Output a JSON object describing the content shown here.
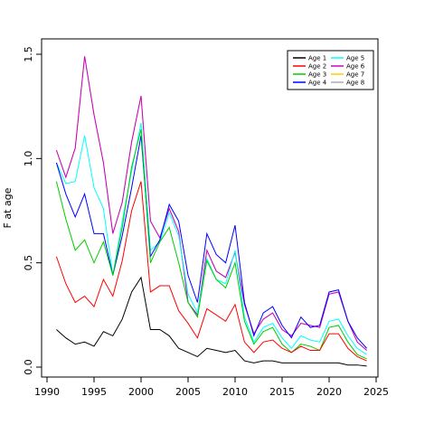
{
  "chart_data": {
    "type": "line",
    "title": "",
    "xlabel": "",
    "ylabel": "F at age",
    "xlim": [
      1990,
      2025
    ],
    "ylim": [
      0,
      1.5
    ],
    "x_ticks": [
      1990,
      1995,
      2000,
      2005,
      2010,
      2015,
      2020,
      2025
    ],
    "y_ticks": [
      0.0,
      0.5,
      1.0,
      1.5
    ],
    "y_tick_labels": [
      "0.0",
      "0.5",
      "1.0",
      "1.5"
    ],
    "legend_position": "top-right",
    "grid": false,
    "x": [
      1991,
      1992,
      1993,
      1994,
      1995,
      1996,
      1997,
      1998,
      1999,
      2000,
      2001,
      2002,
      2003,
      2004,
      2005,
      2006,
      2007,
      2008,
      2009,
      2010,
      2011,
      2012,
      2013,
      2014,
      2015,
      2016,
      2017,
      2018,
      2019,
      2020,
      2021,
      2022,
      2023,
      2024
    ],
    "series": [
      {
        "name": "Age 1",
        "color": "#000000",
        "values": [
          0.18,
          0.14,
          0.11,
          0.12,
          0.1,
          0.17,
          0.15,
          0.23,
          0.36,
          0.43,
          0.18,
          0.18,
          0.15,
          0.09,
          0.07,
          0.05,
          0.09,
          0.08,
          0.07,
          0.08,
          0.03,
          0.02,
          0.03,
          0.03,
          0.02,
          0.02,
          0.02,
          0.02,
          0.02,
          0.02,
          0.02,
          0.01,
          0.01,
          0.005
        ]
      },
      {
        "name": "Age 2",
        "color": "#ff0000",
        "values": [
          0.53,
          0.4,
          0.31,
          0.34,
          0.29,
          0.42,
          0.34,
          0.51,
          0.75,
          0.89,
          0.36,
          0.39,
          0.39,
          0.27,
          0.21,
          0.14,
          0.28,
          0.25,
          0.22,
          0.3,
          0.12,
          0.07,
          0.12,
          0.13,
          0.09,
          0.07,
          0.1,
          0.08,
          0.08,
          0.16,
          0.16,
          0.09,
          0.05,
          0.03
        ]
      },
      {
        "name": "Age 3",
        "color": "#00cd00",
        "values": [
          0.89,
          0.71,
          0.56,
          0.61,
          0.5,
          0.6,
          0.44,
          0.67,
          0.96,
          1.14,
          0.5,
          0.6,
          0.67,
          0.5,
          0.31,
          0.24,
          0.51,
          0.42,
          0.38,
          0.5,
          0.22,
          0.11,
          0.17,
          0.19,
          0.11,
          0.07,
          0.11,
          0.1,
          0.08,
          0.19,
          0.2,
          0.12,
          0.06,
          0.04
        ]
      },
      {
        "name": "Age 4",
        "color": "#0000ff",
        "values": [
          0.98,
          0.83,
          0.72,
          0.83,
          0.64,
          0.64,
          0.44,
          0.63,
          0.86,
          1.11,
          0.53,
          0.61,
          0.78,
          0.7,
          0.44,
          0.31,
          0.64,
          0.54,
          0.5,
          0.68,
          0.31,
          0.15,
          0.26,
          0.29,
          0.2,
          0.14,
          0.24,
          0.19,
          0.2,
          0.36,
          0.37,
          0.22,
          0.14,
          0.09
        ]
      },
      {
        "name": "Age 5",
        "color": "#00ffff",
        "values": [
          0.98,
          0.88,
          0.89,
          1.11,
          0.86,
          0.76,
          0.44,
          0.7,
          0.94,
          1.17,
          0.56,
          0.6,
          0.74,
          0.63,
          0.35,
          0.26,
          0.52,
          0.42,
          0.4,
          0.56,
          0.24,
          0.12,
          0.19,
          0.21,
          0.14,
          0.09,
          0.15,
          0.13,
          0.12,
          0.22,
          0.23,
          0.15,
          0.09,
          0.06
        ]
      },
      {
        "name": "Age 6",
        "color": "#cc00cc",
        "values": [
          1.04,
          0.91,
          1.05,
          1.49,
          1.21,
          0.98,
          0.64,
          0.79,
          1.08,
          1.3,
          0.7,
          0.62,
          0.76,
          0.65,
          0.31,
          0.25,
          0.56,
          0.46,
          0.43,
          0.55,
          0.3,
          0.16,
          0.23,
          0.26,
          0.18,
          0.15,
          0.21,
          0.2,
          0.19,
          0.35,
          0.36,
          0.22,
          0.12,
          0.08
        ]
      },
      {
        "name": "Age 7",
        "color": "#ffcc00",
        "values": [
          1.04,
          0.91,
          1.05,
          1.49,
          1.21,
          0.98,
          0.64,
          0.79,
          1.08,
          1.3,
          0.7,
          0.62,
          0.76,
          0.65,
          0.31,
          0.25,
          0.56,
          0.46,
          0.43,
          0.55,
          0.3,
          0.16,
          0.23,
          0.26,
          0.18,
          0.15,
          0.21,
          0.2,
          0.19,
          0.35,
          0.36,
          0.22,
          0.12,
          0.08
        ]
      },
      {
        "name": "Age 8",
        "color": "#aaaaaa",
        "values": [
          1.04,
          0.91,
          1.05,
          1.49,
          1.21,
          0.98,
          0.64,
          0.79,
          1.08,
          1.3,
          0.7,
          0.62,
          0.76,
          0.65,
          0.31,
          0.25,
          0.56,
          0.46,
          0.43,
          0.55,
          0.3,
          0.16,
          0.23,
          0.26,
          0.18,
          0.15,
          0.21,
          0.2,
          0.19,
          0.35,
          0.36,
          0.22,
          0.12,
          0.08
        ]
      }
    ]
  }
}
